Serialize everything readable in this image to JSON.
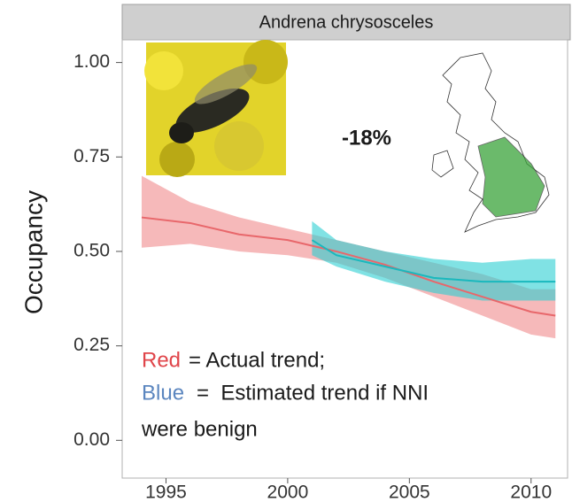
{
  "chart_data": {
    "type": "line",
    "title": "Andrena chrysosceles",
    "y_label": "Occupancy",
    "xlim": [
      1993.2,
      2011.5
    ],
    "ylim": [
      -0.1,
      1.06
    ],
    "xticks": [
      1995,
      2000,
      2005,
      2010
    ],
    "yticks": [
      {
        "value": 0,
        "label": "0.00"
      },
      {
        "value": 0.25,
        "label": "0.25"
      },
      {
        "value": 0.5,
        "label": "0.50"
      },
      {
        "value": 0.75,
        "label": "0.75"
      },
      {
        "value": 1,
        "label": "1.00"
      }
    ],
    "grid": false,
    "series": [
      {
        "name": "Red",
        "color": "#e8676b",
        "band_color": "#f08a8c",
        "x": [
          1994,
          1996,
          1998,
          2000,
          2002,
          2004,
          2006,
          2008,
          2010,
          2011
        ],
        "values": [
          0.59,
          0.575,
          0.545,
          0.53,
          0.5,
          0.465,
          0.42,
          0.38,
          0.34,
          0.33
        ],
        "upper": [
          0.7,
          0.63,
          0.59,
          0.56,
          0.53,
          0.5,
          0.47,
          0.44,
          0.4,
          0.4
        ],
        "lower": [
          0.51,
          0.52,
          0.5,
          0.49,
          0.47,
          0.43,
          0.38,
          0.33,
          0.28,
          0.27
        ]
      },
      {
        "name": "Blue",
        "color": "#1ab8bd",
        "band_color": "#2ccfd2",
        "x": [
          2001,
          2002,
          2004,
          2006,
          2008,
          2010,
          2011
        ],
        "values": [
          0.53,
          0.49,
          0.46,
          0.43,
          0.42,
          0.42,
          0.42
        ],
        "upper": [
          0.58,
          0.53,
          0.5,
          0.48,
          0.47,
          0.48,
          0.48
        ],
        "lower": [
          0.49,
          0.46,
          0.42,
          0.39,
          0.37,
          0.37,
          0.37
        ]
      }
    ],
    "annotations": {
      "change": "-18%",
      "red_text": "= Actual trend;",
      "blue_text": "=  Estimated trend if NNI",
      "blue_text_2": "were benign"
    }
  }
}
